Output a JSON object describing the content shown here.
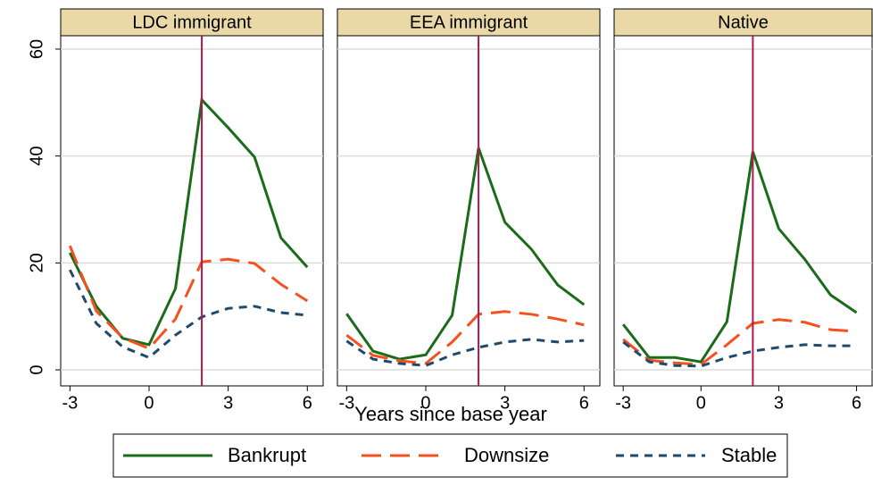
{
  "chart_data": [
    {
      "type": "line",
      "title": "LDC immigrant",
      "xlabel": "Years since base year",
      "x": [
        -3,
        -2,
        -1,
        0,
        1,
        2,
        3,
        4,
        5,
        6
      ],
      "series": [
        {
          "name": "Bankrupt",
          "color": "#1a6b1a",
          "dash": "solid",
          "values": [
            21.9,
            11.9,
            5.9,
            4.7,
            15.2,
            50.5,
            45.3,
            39.8,
            24.7,
            19.2
          ]
        },
        {
          "name": "Downsize",
          "color": "#f4511e",
          "dash": "long",
          "values": [
            23.2,
            11,
            6,
            4,
            9.5,
            20.2,
            20.7,
            19.9,
            16,
            12.9
          ]
        },
        {
          "name": "Stable",
          "color": "#1f4a6e",
          "dash": "short",
          "values": [
            18.7,
            8.7,
            4.3,
            2.3,
            6.5,
            9.9,
            11.5,
            11.9,
            10.7,
            10.2
          ]
        }
      ],
      "xlim": [
        -3.35,
        6.6
      ],
      "xticks": [
        -3,
        0,
        3,
        6
      ],
      "ylim": [
        -3,
        62.5
      ],
      "yticks": [
        0,
        20,
        40,
        60
      ],
      "grid": true,
      "vline": 2,
      "vline_color": "#b0174d"
    },
    {
      "type": "line",
      "title": "EEA immigrant",
      "x": [
        -3,
        -2,
        -1,
        0,
        1,
        2,
        3,
        4,
        5,
        6
      ],
      "series": [
        {
          "name": "Bankrupt",
          "color": "#1a6b1a",
          "dash": "solid",
          "values": [
            10.5,
            3.5,
            2,
            2.8,
            10.2,
            41.5,
            27.6,
            22.6,
            15.9,
            12.2
          ]
        },
        {
          "name": "Downsize",
          "color": "#f4511e",
          "dash": "long",
          "values": [
            6.5,
            2.7,
            1.7,
            1.2,
            5.2,
            10.4,
            10.9,
            10.4,
            9.5,
            8.4
          ]
        },
        {
          "name": "Stable",
          "color": "#1f4a6e",
          "dash": "short",
          "values": [
            5.4,
            2,
            1.2,
            0.8,
            2.8,
            4.2,
            5.2,
            5.7,
            5.2,
            5.5
          ]
        }
      ],
      "xlim": [
        -3.35,
        6.6
      ],
      "xticks": [
        -3,
        0,
        3,
        6
      ],
      "ylim": [
        -3,
        62.5
      ],
      "yticks": [
        0,
        20,
        40,
        60
      ],
      "grid": true,
      "vline": 2,
      "vline_color": "#b0174d"
    },
    {
      "type": "line",
      "title": "Native",
      "x": [
        -3,
        -2,
        -1,
        0,
        1,
        2,
        3,
        4,
        5,
        6
      ],
      "series": [
        {
          "name": "Bankrupt",
          "color": "#1a6b1a",
          "dash": "solid",
          "values": [
            8.5,
            2.3,
            2.3,
            1.5,
            9,
            40.8,
            26.4,
            20.7,
            14,
            10.7
          ]
        },
        {
          "name": "Downsize",
          "color": "#f4511e",
          "dash": "long",
          "values": [
            5.7,
            1.8,
            1.3,
            1,
            4.7,
            8.7,
            9.4,
            8.9,
            7.5,
            7.2
          ]
        },
        {
          "name": "Stable",
          "color": "#1f4a6e",
          "dash": "short",
          "values": [
            5.2,
            1.5,
            0.8,
            0.7,
            2.3,
            3.5,
            4.2,
            4.7,
            4.5,
            4.5
          ]
        }
      ],
      "xlim": [
        -3.35,
        6.6
      ],
      "xticks": [
        -3,
        0,
        3,
        6
      ],
      "ylim": [
        -3,
        62.5
      ],
      "yticks": [
        0,
        20,
        40,
        60
      ],
      "grid": true,
      "vline": 2,
      "vline_color": "#b0174d"
    }
  ]
}
